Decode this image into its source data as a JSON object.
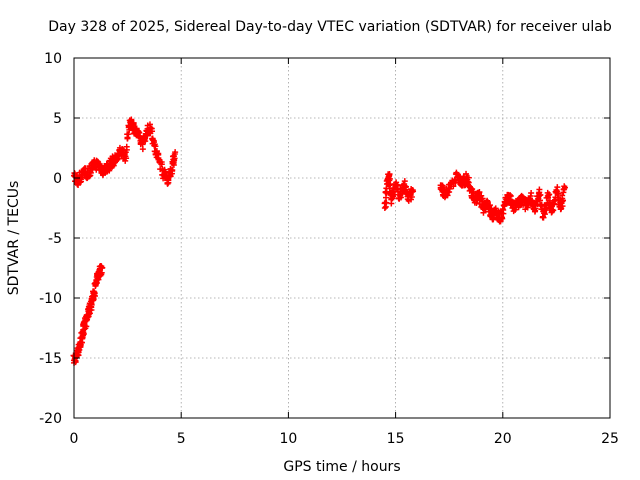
{
  "chart_data": {
    "type": "scatter",
    "title": "Day 328 of 2025, Sidereal Day-to-day VTEC variation (SDTVAR) for receiver ulab",
    "xlabel": "GPS time / hours",
    "ylabel": "SDTVAR / TECUs",
    "xlim": [
      0,
      25
    ],
    "ylim": [
      -20,
      10
    ],
    "xticks": [
      0,
      5,
      10,
      15,
      20,
      25
    ],
    "yticks": [
      -20,
      -15,
      -10,
      -5,
      0,
      5,
      10
    ],
    "grid": true,
    "marker": "+",
    "series": [
      {
        "name": "SDTVAR",
        "color": "#ff0000",
        "segments": [
          {
            "x": [
              0.0,
              0.1,
              0.2,
              0.3,
              0.4,
              0.5,
              0.6,
              0.7,
              0.8,
              0.9,
              1.0,
              1.1,
              1.2,
              1.3
            ],
            "y": [
              -15.2,
              -14.8,
              -14.3,
              -13.8,
              -13.0,
              -12.3,
              -11.6,
              -11.0,
              -10.5,
              -9.9,
              -9.0,
              -8.2,
              -7.8,
              -7.5
            ]
          },
          {
            "x": [
              0.0,
              0.2,
              0.4,
              0.6,
              0.8,
              1.0,
              1.2,
              1.4,
              1.6,
              1.8,
              2.0,
              2.2,
              2.4,
              2.6,
              2.8,
              3.0,
              3.2,
              3.4,
              3.6,
              3.8,
              4.0,
              4.2,
              4.4,
              4.6,
              4.7
            ],
            "y": [
              0.2,
              -0.3,
              0.5,
              0.3,
              0.8,
              1.2,
              0.9,
              0.6,
              1.0,
              1.4,
              1.6,
              2.3,
              1.8,
              4.8,
              4.2,
              3.5,
              2.8,
              3.9,
              4.1,
              2.2,
              1.4,
              0.3,
              -0.2,
              1.2,
              2.0
            ]
          },
          {
            "x": [
              14.5,
              14.6,
              14.7,
              14.8,
              15.0,
              15.2,
              15.4,
              15.6,
              15.8
            ],
            "y": [
              -2.5,
              -0.5,
              0.2,
              -1.8,
              -0.6,
              -1.5,
              -0.5,
              -1.8,
              -1.0
            ]
          },
          {
            "x": [
              17.1,
              17.3,
              17.6,
              17.9,
              18.1,
              18.3,
              18.5,
              18.7,
              18.9,
              19.1,
              19.3,
              19.5,
              19.7,
              19.9,
              20.1,
              20.3,
              20.5,
              20.7,
              20.9,
              21.1,
              21.3,
              21.5,
              21.7,
              21.9,
              22.1,
              22.3,
              22.5,
              22.7,
              22.9
            ],
            "y": [
              -0.6,
              -1.6,
              -0.4,
              0.1,
              -0.5,
              0.0,
              -1.0,
              -1.8,
              -1.5,
              -2.5,
              -2.0,
              -3.3,
              -2.8,
              -3.5,
              -2.2,
              -1.5,
              -2.5,
              -2.2,
              -1.8,
              -2.3,
              -1.5,
              -2.8,
              -1.2,
              -3.3,
              -1.5,
              -2.8,
              -1.0,
              -2.6,
              -0.8
            ]
          }
        ]
      }
    ]
  }
}
